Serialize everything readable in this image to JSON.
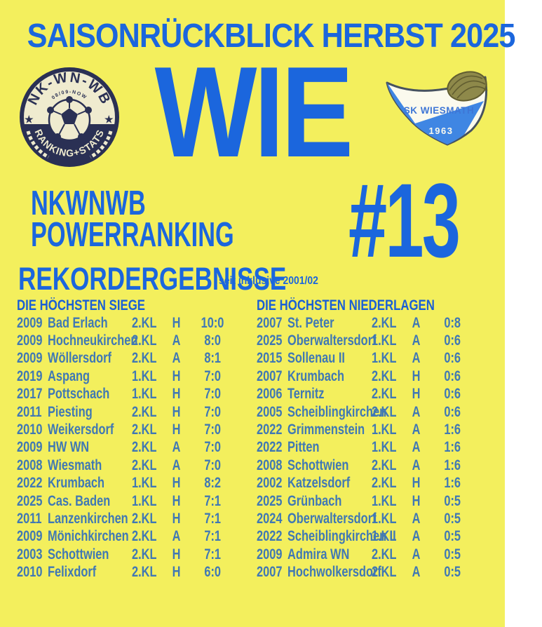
{
  "colors": {
    "background": "#F3EF5D",
    "royal_blue": "#1B66DD",
    "table_blue": "#4078B4",
    "badge_navy": "#2A3054",
    "badge_cream": "#EFEBCF",
    "crest_blue": "#3F86E3",
    "crest_outline": "#46525F",
    "ball_olive": "#8E894A"
  },
  "header": {
    "title": "SAISONRÜCKBLICK HERBST 2025"
  },
  "hero": {
    "word": "WIE",
    "left_badge": {
      "arc_top": "NK-WN-WB",
      "arc_small": "08/09-NOW",
      "arc_bottom": "RANKING+STATS",
      "star": "★"
    },
    "right_crest": {
      "club": "SK WIESMATH",
      "year": "1963"
    }
  },
  "powerranking": {
    "line1": "NKWNWB",
    "line2": "POWERRANKING",
    "rank": "#13"
  },
  "section": {
    "title": "REKORDERGEBNISSE",
    "subtitle": "seit inklusive 2001/02"
  },
  "tables": {
    "siege": {
      "header": "DIE HÖCHSTEN SIEGE",
      "rows": [
        {
          "year": "2009",
          "team": "Bad Erlach",
          "league": "2.KL",
          "venue": "H",
          "score": "10:0"
        },
        {
          "year": "2009",
          "team": "Hochneukirchen",
          "league": "2.KL",
          "venue": "A",
          "score": "8:0"
        },
        {
          "year": "2009",
          "team": "Wöllersdorf",
          "league": "2.KL",
          "venue": "A",
          "score": "8:1"
        },
        {
          "year": "2019",
          "team": "Aspang",
          "league": "1.KL",
          "venue": "H",
          "score": "7:0"
        },
        {
          "year": "2017",
          "team": "Pottschach",
          "league": "1.KL",
          "venue": "H",
          "score": "7:0"
        },
        {
          "year": "2011",
          "team": "Piesting",
          "league": "2.KL",
          "venue": "H",
          "score": "7:0"
        },
        {
          "year": "2010",
          "team": "Weikersdorf",
          "league": "2.KL",
          "venue": "H",
          "score": "7:0"
        },
        {
          "year": "2009",
          "team": "HW WN",
          "league": "2.KL",
          "venue": "A",
          "score": "7:0"
        },
        {
          "year": "2008",
          "team": "Wiesmath",
          "league": "2.KL",
          "venue": "A",
          "score": "7:0"
        },
        {
          "year": "2022",
          "team": "Krumbach",
          "league": "1.KL",
          "venue": "H",
          "score": "8:2"
        },
        {
          "year": "2025",
          "team": "Cas. Baden",
          "league": "1.KL",
          "venue": "H",
          "score": "7:1"
        },
        {
          "year": "2011",
          "team": "Lanzenkirchen",
          "league": "2.KL",
          "venue": "H",
          "score": "7:1"
        },
        {
          "year": "2009",
          "team": "Mönichkirchen",
          "league": "2.KL",
          "venue": "A",
          "score": "7:1"
        },
        {
          "year": "2003",
          "team": "Schottwien",
          "league": "2.KL",
          "venue": "H",
          "score": "7:1"
        },
        {
          "year": "2010",
          "team": "Felixdorf",
          "league": "2.KL",
          "venue": "H",
          "score": "6:0"
        }
      ]
    },
    "niederlagen": {
      "header": "DIE HÖCHSTEN NIEDERLAGEN",
      "rows": [
        {
          "year": "2007",
          "team": "St. Peter",
          "league": "2.KL",
          "venue": "A",
          "score": "0:8"
        },
        {
          "year": "2025",
          "team": "Oberwaltersdorf",
          "league": "1.KL",
          "venue": "A",
          "score": "0:6"
        },
        {
          "year": "2015",
          "team": "Sollenau II",
          "league": "1.KL",
          "venue": "A",
          "score": "0:6"
        },
        {
          "year": "2007",
          "team": "Krumbach",
          "league": "2.KL",
          "venue": "H",
          "score": "0:6"
        },
        {
          "year": "2006",
          "team": "Ternitz",
          "league": "2.KL",
          "venue": "H",
          "score": "0:6"
        },
        {
          "year": "2005",
          "team": "Scheiblingkirchen",
          "league": "2.KL",
          "venue": "A",
          "score": "0:6"
        },
        {
          "year": "2022",
          "team": "Grimmenstein",
          "league": "1.KL",
          "venue": "A",
          "score": "1:6"
        },
        {
          "year": "2022",
          "team": "Pitten",
          "league": "1.KL",
          "venue": "A",
          "score": "1:6"
        },
        {
          "year": "2008",
          "team": "Schottwien",
          "league": "2.KL",
          "venue": "A",
          "score": "1:6"
        },
        {
          "year": "2002",
          "team": "Katzelsdorf",
          "league": "2.KL",
          "venue": "H",
          "score": "1:6"
        },
        {
          "year": "2025",
          "team": "Grünbach",
          "league": "1.KL",
          "venue": "H",
          "score": "0:5"
        },
        {
          "year": "2024",
          "team": "Oberwaltersdorf",
          "league": "1.KL",
          "venue": "A",
          "score": "0:5"
        },
        {
          "year": "2022",
          "team": "Scheiblingkirchen II",
          "league": "1.KL",
          "venue": "A",
          "score": "0:5"
        },
        {
          "year": "2009",
          "team": "Admira WN",
          "league": "2.KL",
          "venue": "A",
          "score": "0:5"
        },
        {
          "year": "2007",
          "team": "Hochwolkersdorf",
          "league": "2.KL",
          "venue": "A",
          "score": "0:5"
        }
      ]
    }
  }
}
